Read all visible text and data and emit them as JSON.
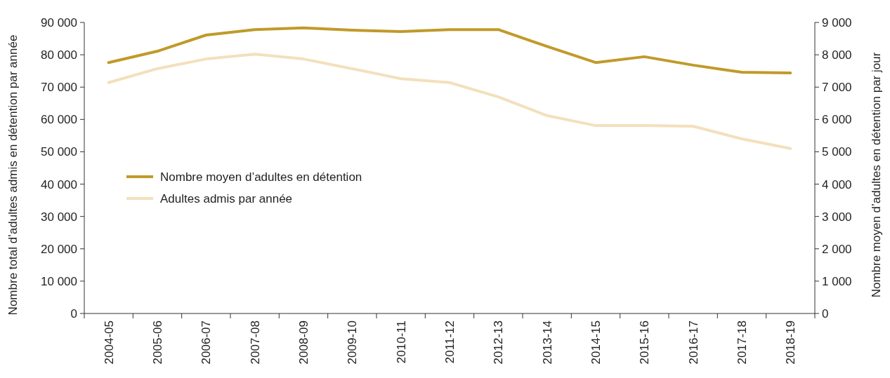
{
  "chart_data": {
    "type": "line",
    "ylabel": "Nombre total d’adultes admis en détention par année",
    "y2label": "Nombre moyen d’adultes en détention par jour",
    "categories": [
      "2004-05",
      "2005-06",
      "2006-07",
      "2007-08",
      "2008-09",
      "2009-10",
      "2010-11",
      "2011-12",
      "2012-13",
      "2013-14",
      "2014-15",
      "2015-16",
      "2016-17",
      "2017-18",
      "2018-19"
    ],
    "series": [
      {
        "name": "Nombre moyen d’adultes en détention",
        "color": "#c09a2a",
        "axis": "y2",
        "values": [
          7760,
          8110,
          8610,
          8780,
          8830,
          8760,
          8720,
          8780,
          8780,
          8260,
          7760,
          7940,
          7680,
          7460,
          7440
        ]
      },
      {
        "name": "Adultes admis par année",
        "color": "#f3e0bc",
        "axis": "y",
        "values": [
          71400,
          75700,
          78700,
          80200,
          78700,
          75700,
          72600,
          71400,
          67000,
          61200,
          58100,
          58100,
          57900,
          54000,
          51000
        ]
      }
    ],
    "ylim": [
      0,
      90000
    ],
    "yticks": [
      0,
      {
        "value": 10000,
        "label": "10 000"
      },
      {
        "value": 20000,
        "label": "20 000"
      },
      {
        "value": 30000,
        "label": "30 000"
      },
      {
        "value": 40000,
        "label": "40 000"
      },
      {
        "value": 50000,
        "label": "50 000"
      },
      {
        "value": 60000,
        "label": "60 000"
      },
      {
        "value": 70000,
        "label": "70 000"
      },
      {
        "value": 80000,
        "label": "80 000"
      },
      {
        "value": 90000,
        "label": "90 000"
      }
    ],
    "y2lim": [
      0,
      9000
    ],
    "y2ticks": [
      0,
      {
        "value": 1000,
        "label": "1 000"
      },
      {
        "value": 2000,
        "label": "2 000"
      },
      {
        "value": 3000,
        "label": "3 000"
      },
      {
        "value": 4000,
        "label": "4 000"
      },
      {
        "value": 5000,
        "label": "5 000"
      },
      {
        "value": 6000,
        "label": "6 000"
      },
      {
        "value": 7000,
        "label": "7 000"
      },
      {
        "value": 8000,
        "label": "8 000"
      },
      {
        "value": 9000,
        "label": "9 000"
      }
    ],
    "legend": "left",
    "grid": false,
    "line_style": "solid",
    "marker": "none"
  }
}
